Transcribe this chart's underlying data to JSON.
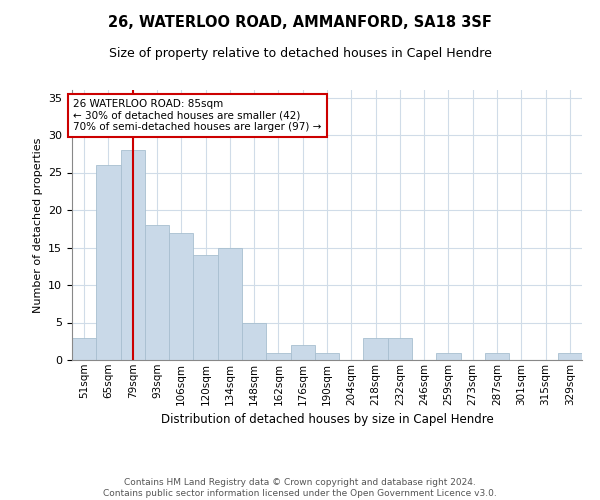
{
  "title": "26, WATERLOO ROAD, AMMANFORD, SA18 3SF",
  "subtitle": "Size of property relative to detached houses in Capel Hendre",
  "xlabel": "Distribution of detached houses by size in Capel Hendre",
  "ylabel": "Number of detached properties",
  "categories": [
    "51sqm",
    "65sqm",
    "79sqm",
    "93sqm",
    "106sqm",
    "120sqm",
    "134sqm",
    "148sqm",
    "162sqm",
    "176sqm",
    "190sqm",
    "204sqm",
    "218sqm",
    "232sqm",
    "246sqm",
    "259sqm",
    "273sqm",
    "287sqm",
    "301sqm",
    "315sqm",
    "329sqm"
  ],
  "values": [
    3,
    26,
    28,
    18,
    17,
    14,
    15,
    5,
    1,
    2,
    1,
    0,
    3,
    3,
    0,
    1,
    0,
    1,
    0,
    0,
    1
  ],
  "bar_color": "#c9d9e8",
  "bar_edge_color": "#a8bfd0",
  "vline_x_index": 2.0,
  "vline_color": "#cc0000",
  "annotation_text": "26 WATERLOO ROAD: 85sqm\n← 30% of detached houses are smaller (42)\n70% of semi-detached houses are larger (97) →",
  "annotation_box_color": "#ffffff",
  "annotation_box_edge_color": "#cc0000",
  "ylim": [
    0,
    36
  ],
  "yticks": [
    0,
    5,
    10,
    15,
    20,
    25,
    30,
    35
  ],
  "footer_line1": "Contains HM Land Registry data © Crown copyright and database right 2024.",
  "footer_line2": "Contains public sector information licensed under the Open Government Licence v3.0.",
  "background_color": "#ffffff",
  "grid_color": "#d0dce8"
}
